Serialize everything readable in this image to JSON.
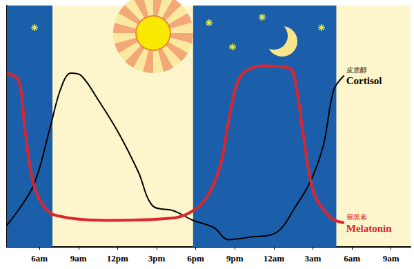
{
  "chart_data": {
    "type": "line",
    "xlim": [
      3.5,
      34.5
    ],
    "xticks": [
      {
        "value": 6,
        "label": "6am"
      },
      {
        "value": 9,
        "label": "9am"
      },
      {
        "value": 12,
        "label": "12pm"
      },
      {
        "value": 15,
        "label": "3pm"
      },
      {
        "value": 18,
        "label": "6pm"
      },
      {
        "value": 21,
        "label": "9pm"
      },
      {
        "value": 24,
        "label": "12am"
      },
      {
        "value": 27,
        "label": "3am"
      },
      {
        "value": 30,
        "label": "6am"
      },
      {
        "value": 33,
        "label": "9am"
      }
    ],
    "ylim": [
      0,
      100
    ],
    "tick_labels": "x",
    "grid": false,
    "night_periods": [
      [
        3.5,
        7
      ],
      [
        17.8,
        28.8
      ]
    ],
    "series": [
      {
        "name": "Cortisol",
        "name_zh": "皮质醇",
        "color": "#000000",
        "x": [
          3.5,
          5.5,
          6.8,
          7.6,
          8.4,
          9.2,
          10.5,
          12.1,
          13.6,
          14.7,
          16.3,
          17.8,
          19.4,
          20.5,
          22.1,
          24.2,
          25.7,
          26.8,
          27.8,
          28.6,
          29.4
        ],
        "values": [
          9,
          25,
          49,
          65,
          72,
          71,
          61,
          47,
          31,
          17,
          15,
          11,
          8,
          3,
          4,
          6,
          17,
          27,
          42,
          65,
          71
        ]
      },
      {
        "name": "Melatonin",
        "name_zh": "褪黑素",
        "color": "#e0242b",
        "x": [
          3.5,
          4.4,
          4.9,
          5.5,
          6.3,
          7.3,
          11,
          16.3,
          17.8,
          18.9,
          19.9,
          20.7,
          21.5,
          23.1,
          25.2,
          25.7,
          26.3,
          27.1,
          28.4,
          29.4
        ],
        "values": [
          72,
          69,
          48,
          27,
          17,
          13,
          11,
          12,
          15,
          21,
          34,
          57,
          71,
          75,
          74,
          67,
          45,
          22,
          12,
          10
        ]
      }
    ]
  }
}
